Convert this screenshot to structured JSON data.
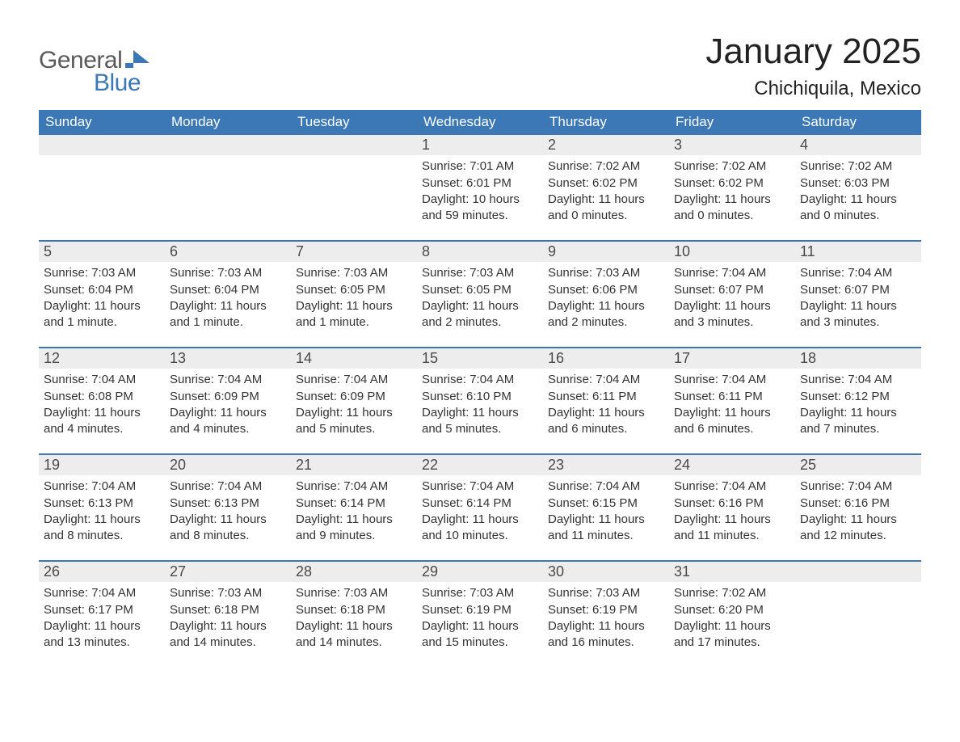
{
  "brand": {
    "word1": "General",
    "word2": "Blue",
    "flag_color": "#3b78b5",
    "word1_color": "#5a5a5a",
    "word2_color": "#3b78b5"
  },
  "header": {
    "month_title": "January 2025",
    "location": "Chichiquila, Mexico"
  },
  "colors": {
    "header_bg": "#3b78b5",
    "header_text": "#ffffff",
    "daynum_bg": "#ededed",
    "week_border": "#3b78b5",
    "body_text": "#333333",
    "page_bg": "#ffffff"
  },
  "typography": {
    "month_title_fontsize": 44,
    "location_fontsize": 24,
    "weekday_fontsize": 17,
    "daynum_fontsize": 18,
    "body_fontsize": 15
  },
  "weekdays": [
    "Sunday",
    "Monday",
    "Tuesday",
    "Wednesday",
    "Thursday",
    "Friday",
    "Saturday"
  ],
  "labels": {
    "sunrise": "Sunrise:",
    "sunset": "Sunset:",
    "daylight": "Daylight:"
  },
  "weeks": [
    [
      {
        "empty": true
      },
      {
        "empty": true
      },
      {
        "empty": true
      },
      {
        "day": "1",
        "sunrise": "7:01 AM",
        "sunset": "6:01 PM",
        "daylight": "10 hours and 59 minutes."
      },
      {
        "day": "2",
        "sunrise": "7:02 AM",
        "sunset": "6:02 PM",
        "daylight": "11 hours and 0 minutes."
      },
      {
        "day": "3",
        "sunrise": "7:02 AM",
        "sunset": "6:02 PM",
        "daylight": "11 hours and 0 minutes."
      },
      {
        "day": "4",
        "sunrise": "7:02 AM",
        "sunset": "6:03 PM",
        "daylight": "11 hours and 0 minutes."
      }
    ],
    [
      {
        "day": "5",
        "sunrise": "7:03 AM",
        "sunset": "6:04 PM",
        "daylight": "11 hours and 1 minute."
      },
      {
        "day": "6",
        "sunrise": "7:03 AM",
        "sunset": "6:04 PM",
        "daylight": "11 hours and 1 minute."
      },
      {
        "day": "7",
        "sunrise": "7:03 AM",
        "sunset": "6:05 PM",
        "daylight": "11 hours and 1 minute."
      },
      {
        "day": "8",
        "sunrise": "7:03 AM",
        "sunset": "6:05 PM",
        "daylight": "11 hours and 2 minutes."
      },
      {
        "day": "9",
        "sunrise": "7:03 AM",
        "sunset": "6:06 PM",
        "daylight": "11 hours and 2 minutes."
      },
      {
        "day": "10",
        "sunrise": "7:04 AM",
        "sunset": "6:07 PM",
        "daylight": "11 hours and 3 minutes."
      },
      {
        "day": "11",
        "sunrise": "7:04 AM",
        "sunset": "6:07 PM",
        "daylight": "11 hours and 3 minutes."
      }
    ],
    [
      {
        "day": "12",
        "sunrise": "7:04 AM",
        "sunset": "6:08 PM",
        "daylight": "11 hours and 4 minutes."
      },
      {
        "day": "13",
        "sunrise": "7:04 AM",
        "sunset": "6:09 PM",
        "daylight": "11 hours and 4 minutes."
      },
      {
        "day": "14",
        "sunrise": "7:04 AM",
        "sunset": "6:09 PM",
        "daylight": "11 hours and 5 minutes."
      },
      {
        "day": "15",
        "sunrise": "7:04 AM",
        "sunset": "6:10 PM",
        "daylight": "11 hours and 5 minutes."
      },
      {
        "day": "16",
        "sunrise": "7:04 AM",
        "sunset": "6:11 PM",
        "daylight": "11 hours and 6 minutes."
      },
      {
        "day": "17",
        "sunrise": "7:04 AM",
        "sunset": "6:11 PM",
        "daylight": "11 hours and 6 minutes."
      },
      {
        "day": "18",
        "sunrise": "7:04 AM",
        "sunset": "6:12 PM",
        "daylight": "11 hours and 7 minutes."
      }
    ],
    [
      {
        "day": "19",
        "sunrise": "7:04 AM",
        "sunset": "6:13 PM",
        "daylight": "11 hours and 8 minutes."
      },
      {
        "day": "20",
        "sunrise": "7:04 AM",
        "sunset": "6:13 PM",
        "daylight": "11 hours and 8 minutes."
      },
      {
        "day": "21",
        "sunrise": "7:04 AM",
        "sunset": "6:14 PM",
        "daylight": "11 hours and 9 minutes."
      },
      {
        "day": "22",
        "sunrise": "7:04 AM",
        "sunset": "6:14 PM",
        "daylight": "11 hours and 10 minutes."
      },
      {
        "day": "23",
        "sunrise": "7:04 AM",
        "sunset": "6:15 PM",
        "daylight": "11 hours and 11 minutes."
      },
      {
        "day": "24",
        "sunrise": "7:04 AM",
        "sunset": "6:16 PM",
        "daylight": "11 hours and 11 minutes."
      },
      {
        "day": "25",
        "sunrise": "7:04 AM",
        "sunset": "6:16 PM",
        "daylight": "11 hours and 12 minutes."
      }
    ],
    [
      {
        "day": "26",
        "sunrise": "7:04 AM",
        "sunset": "6:17 PM",
        "daylight": "11 hours and 13 minutes."
      },
      {
        "day": "27",
        "sunrise": "7:03 AM",
        "sunset": "6:18 PM",
        "daylight": "11 hours and 14 minutes."
      },
      {
        "day": "28",
        "sunrise": "7:03 AM",
        "sunset": "6:18 PM",
        "daylight": "11 hours and 14 minutes."
      },
      {
        "day": "29",
        "sunrise": "7:03 AM",
        "sunset": "6:19 PM",
        "daylight": "11 hours and 15 minutes."
      },
      {
        "day": "30",
        "sunrise": "7:03 AM",
        "sunset": "6:19 PM",
        "daylight": "11 hours and 16 minutes."
      },
      {
        "day": "31",
        "sunrise": "7:02 AM",
        "sunset": "6:20 PM",
        "daylight": "11 hours and 17 minutes."
      },
      {
        "empty": true
      }
    ]
  ]
}
